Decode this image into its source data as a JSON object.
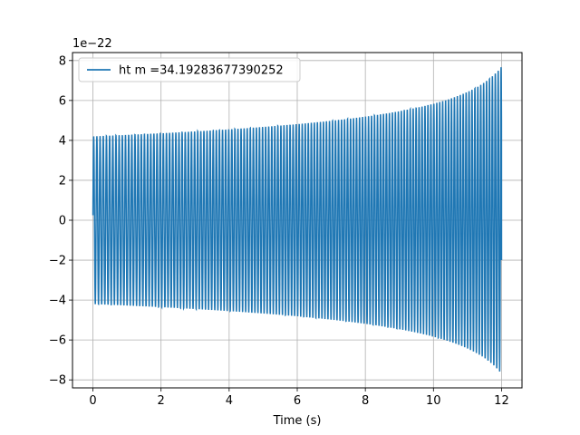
{
  "chart_data": {
    "type": "line",
    "title": "",
    "xlabel": "Time (s)",
    "ylabel": "",
    "y_offset_label": "1e−22",
    "xlim": [
      -0.6,
      12.6
    ],
    "ylim": [
      -8.4,
      8.4
    ],
    "x_ticks": [
      0,
      2,
      4,
      6,
      8,
      10,
      12
    ],
    "x_tick_labels": [
      "0",
      "2",
      "4",
      "6",
      "8",
      "10",
      "12"
    ],
    "y_ticks": [
      -8,
      -6,
      -4,
      -2,
      0,
      2,
      4,
      6,
      8
    ],
    "y_tick_labels": [
      "−8",
      "−6",
      "−4",
      "−2",
      "0",
      "2",
      "4",
      "6",
      "8"
    ],
    "grid": true,
    "legend_position": "top-left",
    "series": [
      {
        "name": "ht m =34.19283677390252",
        "color": "#1f77b4",
        "x_range": [
          0,
          12
        ],
        "envelope_start": 4.2,
        "envelope_end": 7.7,
        "start_value": 0.25,
        "end_value": -2.0,
        "cycles_approx": 128
      }
    ]
  }
}
